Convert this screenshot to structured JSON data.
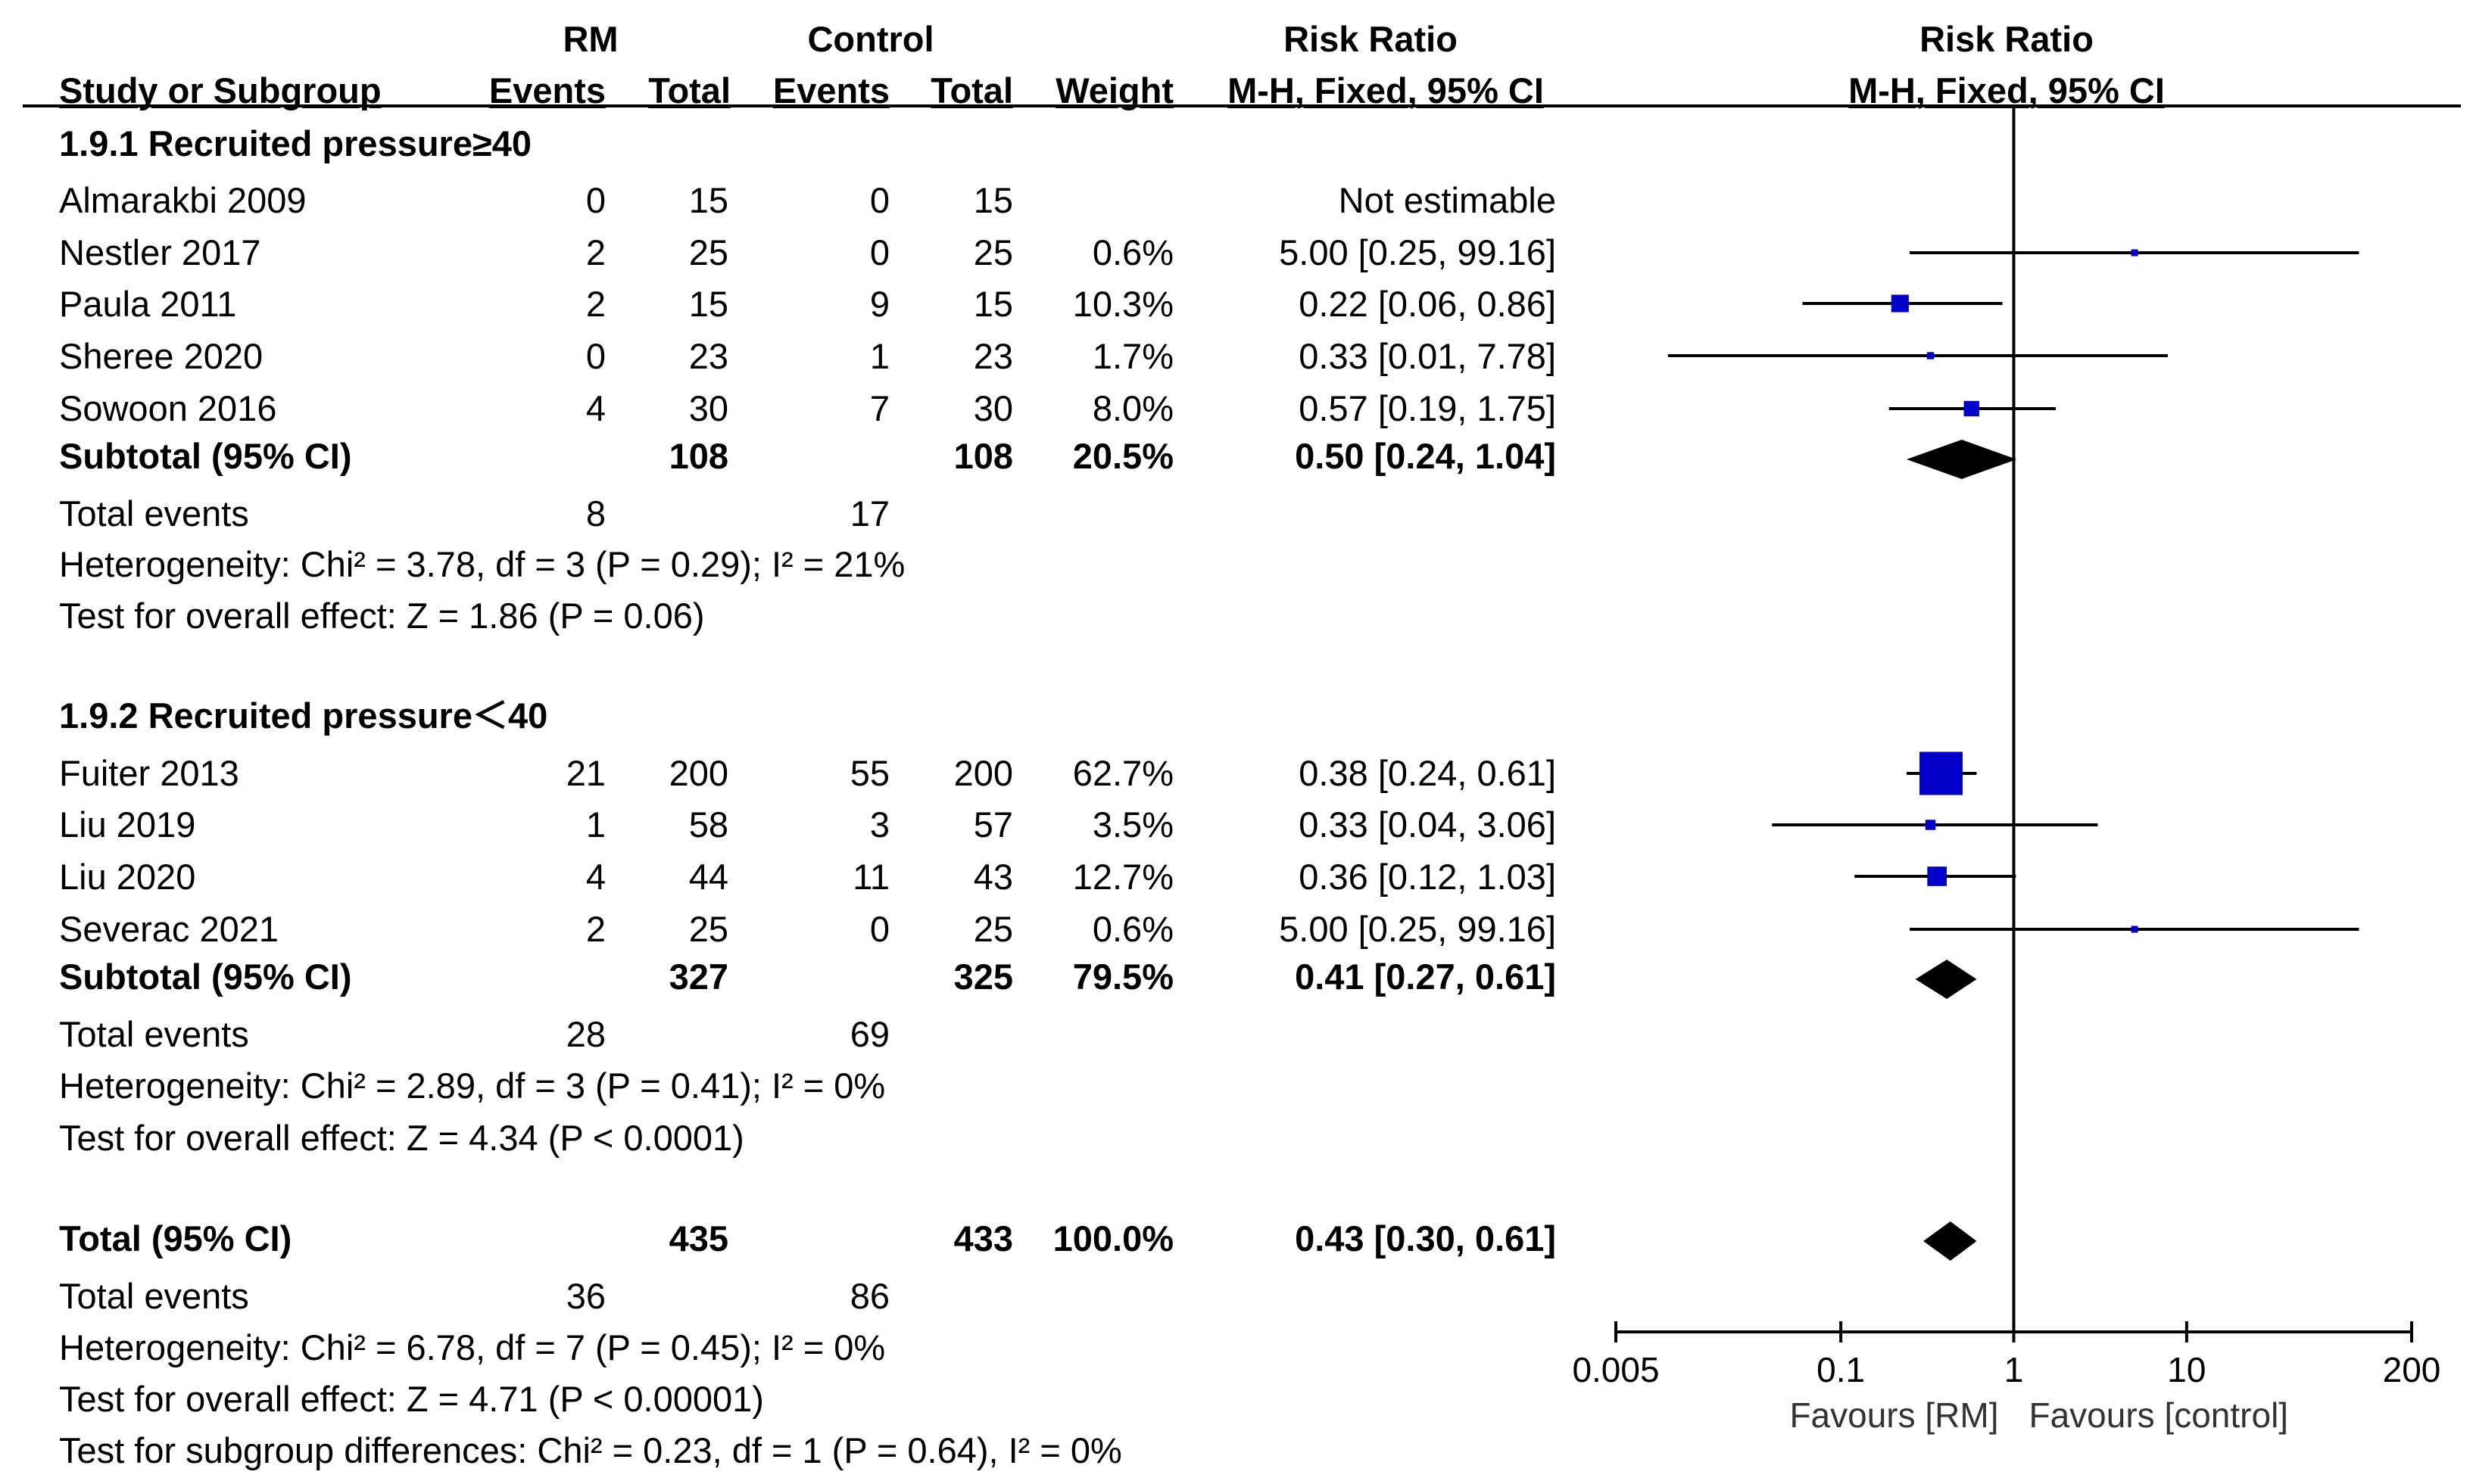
{
  "chart_data": {
    "type": "forest",
    "headers": {
      "study": "Study or Subgroup",
      "group1": "RM",
      "group2": "Control",
      "events": "Events",
      "total": "Total",
      "weight": "Weight",
      "rr_title": "Risk Ratio",
      "rr_method": "M-H, Fixed, 95% CI",
      "plot_title": "Risk Ratio",
      "plot_method": "M-H, Fixed, 95% CI"
    },
    "subgroups": [
      {
        "name": "1.9.1 Recruited pressure≥40",
        "studies": [
          {
            "name": "Almarakbi 2009",
            "e1": "0",
            "n1": "15",
            "e2": "0",
            "n2": "15",
            "weight": "",
            "ci": "Not estimable",
            "rr": null,
            "lo": null,
            "hi": null,
            "w": 0
          },
          {
            "name": "Nestler 2017",
            "e1": "2",
            "n1": "25",
            "e2": "0",
            "n2": "25",
            "weight": "0.6%",
            "ci": "5.00 [0.25, 99.16]",
            "rr": 5.0,
            "lo": 0.25,
            "hi": 99.16,
            "w": 0.6
          },
          {
            "name": "Paula 2011",
            "e1": "2",
            "n1": "15",
            "e2": "9",
            "n2": "15",
            "weight": "10.3%",
            "ci": "0.22 [0.06, 0.86]",
            "rr": 0.22,
            "lo": 0.06,
            "hi": 0.86,
            "w": 10.3
          },
          {
            "name": "Sheree 2020",
            "e1": "0",
            "n1": "23",
            "e2": "1",
            "n2": "23",
            "weight": "1.7%",
            "ci": "0.33 [0.01, 7.78]",
            "rr": 0.33,
            "lo": 0.01,
            "hi": 7.78,
            "w": 1.7
          },
          {
            "name": "Sowoon 2016",
            "e1": "4",
            "n1": "30",
            "e2": "7",
            "n2": "30",
            "weight": "8.0%",
            "ci": "0.57 [0.19, 1.75]",
            "rr": 0.57,
            "lo": 0.19,
            "hi": 1.75,
            "w": 8.0
          }
        ],
        "subtotal": {
          "label": "Subtotal (95% CI)",
          "n1": "108",
          "n2": "108",
          "weight": "20.5%",
          "ci": "0.50 [0.24, 1.04]",
          "rr": 0.5,
          "lo": 0.24,
          "hi": 1.04
        },
        "total_events": {
          "label": "Total events",
          "e1": "8",
          "e2": "17"
        },
        "heterogeneity": "Heterogeneity: Chi² = 3.78, df = 3 (P = 0.29); I² = 21%",
        "overall": "Test for overall effect: Z = 1.86 (P = 0.06)"
      },
      {
        "name": "1.9.2 Recruited pressure＜40",
        "studies": [
          {
            "name": "Fuiter 2013",
            "e1": "21",
            "n1": "200",
            "e2": "55",
            "n2": "200",
            "weight": "62.7%",
            "ci": "0.38 [0.24, 0.61]",
            "rr": 0.38,
            "lo": 0.24,
            "hi": 0.61,
            "w": 62.7
          },
          {
            "name": "Liu 2019",
            "e1": "1",
            "n1": "58",
            "e2": "3",
            "n2": "57",
            "weight": "3.5%",
            "ci": "0.33 [0.04, 3.06]",
            "rr": 0.33,
            "lo": 0.04,
            "hi": 3.06,
            "w": 3.5
          },
          {
            "name": "Liu 2020",
            "e1": "4",
            "n1": "44",
            "e2": "11",
            "n2": "43",
            "weight": "12.7%",
            "ci": "0.36 [0.12, 1.03]",
            "rr": 0.36,
            "lo": 0.12,
            "hi": 1.03,
            "w": 12.7
          },
          {
            "name": "Severac 2021",
            "e1": "2",
            "n1": "25",
            "e2": "0",
            "n2": "25",
            "weight": "0.6%",
            "ci": "5.00 [0.25, 99.16]",
            "rr": 5.0,
            "lo": 0.25,
            "hi": 99.16,
            "w": 0.6
          }
        ],
        "subtotal": {
          "label": "Subtotal (95% CI)",
          "n1": "327",
          "n2": "325",
          "weight": "79.5%",
          "ci": "0.41 [0.27, 0.61]",
          "rr": 0.41,
          "lo": 0.27,
          "hi": 0.61
        },
        "total_events": {
          "label": "Total events",
          "e1": "28",
          "e2": "69"
        },
        "heterogeneity": "Heterogeneity: Chi² = 2.89, df = 3 (P = 0.41); I² = 0%",
        "overall": "Test for overall effect: Z = 4.34 (P < 0.0001)"
      }
    ],
    "total": {
      "label": "Total (95% CI)",
      "n1": "435",
      "n2": "433",
      "weight": "100.0%",
      "ci": "0.43 [0.30, 0.61]",
      "rr": 0.43,
      "lo": 0.3,
      "hi": 0.61
    },
    "total_events": {
      "label": "Total events",
      "e1": "36",
      "e2": "86"
    },
    "heterogeneity": "Heterogeneity: Chi² = 6.78, df = 7 (P = 0.45); I² = 0%",
    "overall": "Test for overall effect: Z = 4.71 (P < 0.00001)",
    "subgroup_diff": "Test for subgroup differences: Chi² = 0.23, df = 1 (P = 0.64), I² = 0%",
    "axis": {
      "scale": "log",
      "ticks": [
        0.005,
        0.1,
        1,
        10,
        200
      ],
      "tick_labels": [
        "0.005",
        "0.1",
        "1",
        "10",
        "200"
      ],
      "range": [
        0.005,
        200
      ],
      "favours_left": "Favours [RM]",
      "favours_right": "Favours [control]"
    },
    "colors": {
      "study_marker": "#0000c8",
      "summary_diamond": "#000000",
      "lines": "#000000"
    }
  }
}
